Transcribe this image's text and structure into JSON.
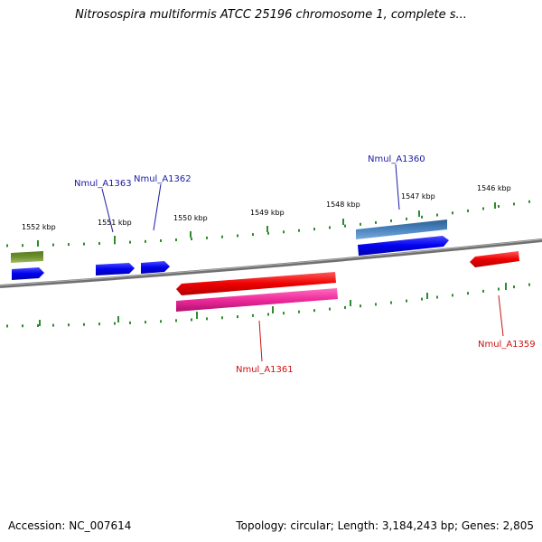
{
  "title": "Nitrosospira multiformis ATCC 25196 chromosome 1, complete s...",
  "footer": {
    "accession": "Accession: NC_007614",
    "summary": "Topology: circular; Length: 3,184,243 bp; Genes: 2,805"
  },
  "colors": {
    "backbone": "#808080",
    "tick": "#2e8b2e",
    "label_forward": "#1a1aa6",
    "label_reverse": "#cc1111"
  },
  "scale_labels": [
    "1552 kbp",
    "1551 kbp",
    "1550 kbp",
    "1549 kbp",
    "1548 kbp",
    "1547 kbp",
    "1546 kbp"
  ],
  "genes": [
    {
      "label": "Nmul_A1363",
      "strand": "forward"
    },
    {
      "label": "Nmul_A1362",
      "strand": "forward"
    },
    {
      "label": "Nmul_A1360",
      "strand": "forward"
    },
    {
      "label": "Nmul_A1361",
      "strand": "reverse"
    },
    {
      "label": "Nmul_A1359",
      "strand": "reverse"
    }
  ]
}
